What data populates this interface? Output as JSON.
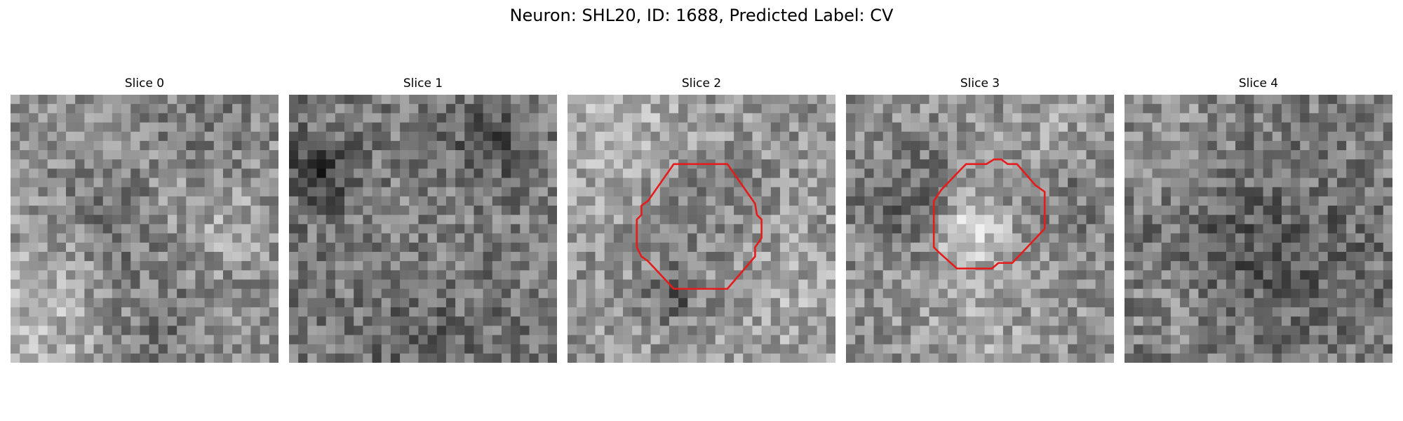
{
  "figure": {
    "title": "Neuron: SHL20, ID: 1688, Predicted Label: CV"
  },
  "slices": [
    {
      "title": "Slice 0"
    },
    {
      "title": "Slice 1"
    },
    {
      "title": "Slice 2"
    },
    {
      "title": "Slice 3"
    },
    {
      "title": "Slice 4"
    }
  ],
  "contour_color": "#e41c1c",
  "colormap": "gray"
}
